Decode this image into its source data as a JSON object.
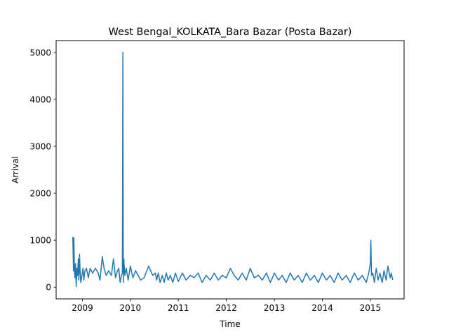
{
  "chart_data": {
    "type": "line",
    "title": "West Bengal_KOLKATA_Bara Bazar (Posta Bazar)",
    "xlabel": "Time",
    "ylabel": "Arrival",
    "xlim": [
      "2008-06-15",
      "2015-09-15"
    ],
    "ylim": [
      -250,
      5250
    ],
    "x_ticks": [
      "2009",
      "2010",
      "2011",
      "2012",
      "2013",
      "2014",
      "2015"
    ],
    "y_ticks": [
      0,
      1000,
      2000,
      3000,
      4000,
      5000
    ],
    "grid": false,
    "legend": "none",
    "series": [
      {
        "color": "#1f77b4",
        "x": [
          "2008-10-20",
          "2008-10-25",
          "2008-10-28",
          "2008-11-01",
          "2008-11-05",
          "2008-11-10",
          "2008-11-15",
          "2008-11-20",
          "2008-11-25",
          "2008-12-01",
          "2008-12-05",
          "2008-12-10",
          "2008-12-15",
          "2008-12-20",
          "2009-01-05",
          "2009-01-12",
          "2009-01-20",
          "2009-02-01",
          "2009-02-15",
          "2009-03-01",
          "2009-03-20",
          "2009-04-10",
          "2009-05-01",
          "2009-05-15",
          "2009-06-01",
          "2009-06-15",
          "2009-07-01",
          "2009-07-20",
          "2009-08-10",
          "2009-08-25",
          "2009-09-10",
          "2009-09-25",
          "2009-10-05",
          "2009-10-15",
          "2009-10-25",
          "2009-11-01",
          "2009-11-05",
          "2009-11-08",
          "2009-11-12",
          "2009-11-20",
          "2009-12-01",
          "2009-12-15",
          "2010-01-01",
          "2010-01-20",
          "2010-02-10",
          "2010-03-01",
          "2010-03-20",
          "2010-04-15",
          "2010-05-20",
          "2010-06-20",
          "2010-07-10",
          "2010-07-20",
          "2010-08-01",
          "2010-08-15",
          "2010-09-01",
          "2010-09-15",
          "2010-10-01",
          "2010-10-15",
          "2010-11-01",
          "2010-11-20",
          "2010-12-10",
          "2011-01-01",
          "2011-02-01",
          "2011-03-01",
          "2011-04-01",
          "2011-05-01",
          "2011-06-01",
          "2011-07-01",
          "2011-08-01",
          "2011-09-01",
          "2011-10-01",
          "2011-11-01",
          "2011-12-01",
          "2012-01-01",
          "2012-02-01",
          "2012-03-01",
          "2012-04-01",
          "2012-05-01",
          "2012-06-01",
          "2012-07-01",
          "2012-08-01",
          "2012-09-01",
          "2012-10-01",
          "2012-11-01",
          "2012-12-01",
          "2013-01-01",
          "2013-02-01",
          "2013-03-01",
          "2013-04-01",
          "2013-05-01",
          "2013-06-01",
          "2013-07-01",
          "2013-08-01",
          "2013-09-01",
          "2013-10-01",
          "2013-11-01",
          "2013-12-01",
          "2014-01-01",
          "2014-02-01",
          "2014-03-01",
          "2014-04-01",
          "2014-05-01",
          "2014-06-01",
          "2014-07-01",
          "2014-08-01",
          "2014-09-01",
          "2014-10-01",
          "2014-11-01",
          "2014-12-01",
          "2014-12-20",
          "2015-01-01",
          "2015-01-05",
          "2015-01-10",
          "2015-01-20",
          "2015-02-01",
          "2015-02-15",
          "2015-03-01",
          "2015-03-15",
          "2015-04-01",
          "2015-04-15",
          "2015-05-01",
          "2015-05-15",
          "2015-06-01",
          "2015-06-10",
          "2015-06-20"
        ],
        "values": [
          1070,
          350,
          1050,
          400,
          200,
          500,
          10,
          400,
          250,
          600,
          150,
          700,
          300,
          100,
          400,
          150,
          350,
          400,
          200,
          400,
          300,
          400,
          300,
          150,
          650,
          400,
          250,
          350,
          250,
          600,
          200,
          350,
          400,
          100,
          250,
          300,
          5000,
          100,
          600,
          250,
          400,
          150,
          450,
          200,
          350,
          250,
          150,
          200,
          450,
          250,
          300,
          150,
          300,
          100,
          250,
          100,
          300,
          150,
          250,
          100,
          300,
          120,
          300,
          150,
          250,
          200,
          300,
          100,
          250,
          150,
          300,
          150,
          250,
          200,
          400,
          250,
          150,
          300,
          150,
          400,
          200,
          250,
          150,
          300,
          100,
          300,
          150,
          250,
          100,
          300,
          150,
          250,
          100,
          300,
          150,
          250,
          100,
          300,
          150,
          250,
          100,
          300,
          150,
          250,
          100,
          300,
          150,
          250,
          100,
          300,
          500,
          1000,
          250,
          300,
          100,
          400,
          150,
          300,
          100,
          350,
          150,
          450,
          200,
          300,
          150
        ]
      }
    ]
  }
}
